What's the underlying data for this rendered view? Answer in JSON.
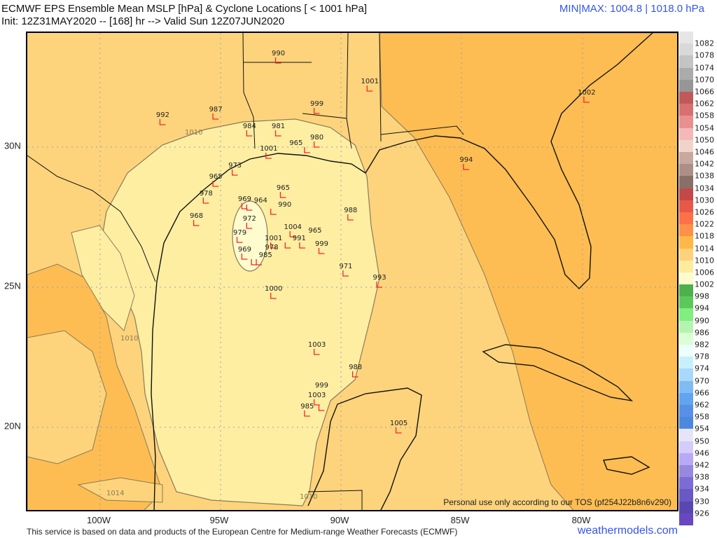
{
  "header": {
    "title": "ECMWF EPS Ensemble Mean MSLP [hPa] & Cyclone Locations [ < 1001 hPa]",
    "subtitle": "Init: 12Z31MAY2020 -- [168] hr --> Valid Sun 12Z07JUN2020",
    "minmax": "MIN|MAX: 1004.8 | 1018.0 hPa",
    "minmax_color": "#3355ee"
  },
  "map": {
    "region": "Gulf of Mexico",
    "lon_range": [
      -103,
      -76
    ],
    "lat_range": [
      17,
      34.1
    ],
    "x_ticks": [
      "100W",
      "95W",
      "90W",
      "85W",
      "80W"
    ],
    "y_ticks": [
      "30N",
      "25N",
      "20N"
    ],
    "contour_labels": [
      "1010",
      "1010",
      "1014",
      "1010"
    ],
    "tos_note": "Personal use only according to our TOS (pf254J22b8n6v290)",
    "cyclone_marker_color": "#ff2222",
    "cyclones": [
      {
        "p": "990",
        "lon": -92.6,
        "lat": 33.0
      },
      {
        "p": "1001",
        "lon": -88.8,
        "lat": 32.0
      },
      {
        "p": "1002",
        "lon": -79.8,
        "lat": 31.6
      },
      {
        "p": "992",
        "lon": -97.4,
        "lat": 30.8
      },
      {
        "p": "987",
        "lon": -95.2,
        "lat": 31.0
      },
      {
        "p": "999",
        "lon": -91.0,
        "lat": 31.2
      },
      {
        "p": "984",
        "lon": -93.8,
        "lat": 30.4
      },
      {
        "p": "981",
        "lon": -92.6,
        "lat": 30.4
      },
      {
        "p": "980",
        "lon": -91.0,
        "lat": 30.0
      },
      {
        "p": "965",
        "lon": -91.4,
        "lat": 29.8
      },
      {
        "p": "1001",
        "lon": -93.0,
        "lat": 29.6
      },
      {
        "p": "994",
        "lon": -84.8,
        "lat": 29.2
      },
      {
        "p": "973",
        "lon": -94.4,
        "lat": 29.0
      },
      {
        "p": "965",
        "lon": -95.2,
        "lat": 28.6
      },
      {
        "p": "965",
        "lon": -92.4,
        "lat": 28.2
      },
      {
        "p": "978",
        "lon": -95.6,
        "lat": 28.0
      },
      {
        "p": "969",
        "lon": -94.0,
        "lat": 27.8
      },
      {
        "p": "964",
        "lon": -93.8,
        "lat": 27.75
      },
      {
        "p": "990",
        "lon": -92.8,
        "lat": 27.6
      },
      {
        "p": "988",
        "lon": -89.6,
        "lat": 27.4
      },
      {
        "p": "968",
        "lon": -96.0,
        "lat": 27.2
      },
      {
        "p": "972",
        "lon": -93.8,
        "lat": 27.1
      },
      {
        "p": "1004",
        "lon": -92.0,
        "lat": 26.8
      },
      {
        "p": "979",
        "lon": -94.2,
        "lat": 26.6
      },
      {
        "p": "1001",
        "lon": -92.8,
        "lat": 26.4
      },
      {
        "p": "991",
        "lon": -92.2,
        "lat": 26.4
      },
      {
        "p": "965",
        "lon": -91.6,
        "lat": 26.4
      },
      {
        "p": "999",
        "lon": -90.8,
        "lat": 26.2
      },
      {
        "p": "969",
        "lon": -94.0,
        "lat": 26.0
      },
      {
        "p": "985",
        "lon": -93.6,
        "lat": 25.8
      },
      {
        "p": "978",
        "lon": -93.4,
        "lat": 25.8
      },
      {
        "p": "971",
        "lon": -89.8,
        "lat": 25.4
      },
      {
        "p": "993",
        "lon": -88.4,
        "lat": 25.0
      },
      {
        "p": "1000",
        "lon": -92.8,
        "lat": 24.6
      },
      {
        "p": "1003",
        "lon": -91.0,
        "lat": 22.6
      },
      {
        "p": "988",
        "lon": -89.4,
        "lat": 21.8
      },
      {
        "p": "1003",
        "lon": -91.0,
        "lat": 20.8
      },
      {
        "p": "999",
        "lon": -90.8,
        "lat": 20.6
      },
      {
        "p": "985",
        "lon": -91.4,
        "lat": 20.4
      },
      {
        "p": "1005",
        "lon": -87.6,
        "lat": 19.8
      }
    ]
  },
  "colorbar": {
    "levels": [
      "1082",
      "1078",
      "1074",
      "1070",
      "1066",
      "1062",
      "1058",
      "1054",
      "1050",
      "1046",
      "1042",
      "1038",
      "1034",
      "1030",
      "1026",
      "1022",
      "1018",
      "1014",
      "1010",
      "1006",
      "1002",
      "998",
      "994",
      "990",
      "986",
      "982",
      "978",
      "974",
      "970",
      "966",
      "962",
      "958",
      "954",
      "950",
      "946",
      "942",
      "938",
      "934",
      "930",
      "926"
    ],
    "colors": [
      "#e6e6e6",
      "#d9d9d9",
      "#c4c4c4",
      "#ababab",
      "#969696",
      "#c05a5a",
      "#d87070",
      "#e89090",
      "#f5b8b8",
      "#f0d4cc",
      "#c9a89e",
      "#ad8e88",
      "#8a6e68",
      "#c44848",
      "#e85848",
      "#ff7048",
      "#ff9048",
      "#ffb848",
      "#fed27a",
      "#feec9c",
      "#fefbcd",
      "#4cb04c",
      "#5cc85c",
      "#80ee80",
      "#b4f4b0",
      "#daffd4",
      "#ecfffc",
      "#c8f0fc",
      "#aad8fa",
      "#80bcf4",
      "#62a4ee",
      "#5890e8",
      "#4c88dc",
      "#e8e4f8",
      "#d4ccfa",
      "#b8a8f6",
      "#9888de",
      "#7e6cd6",
      "#6a58c4",
      "#5a48b0",
      "#6848c0"
    ]
  },
  "footer": {
    "credit": "This service is based on data and products of the European Centre for Medium-range Weather Forecasts (ECMWF)",
    "brand": "weathermodels.com"
  },
  "fills": {
    "band_1002_1006": "#fefbcd",
    "band_1006_1010": "#feeea2",
    "band_1010_1014": "#fdd47c",
    "band_1014_1018": "#fdbd52"
  }
}
